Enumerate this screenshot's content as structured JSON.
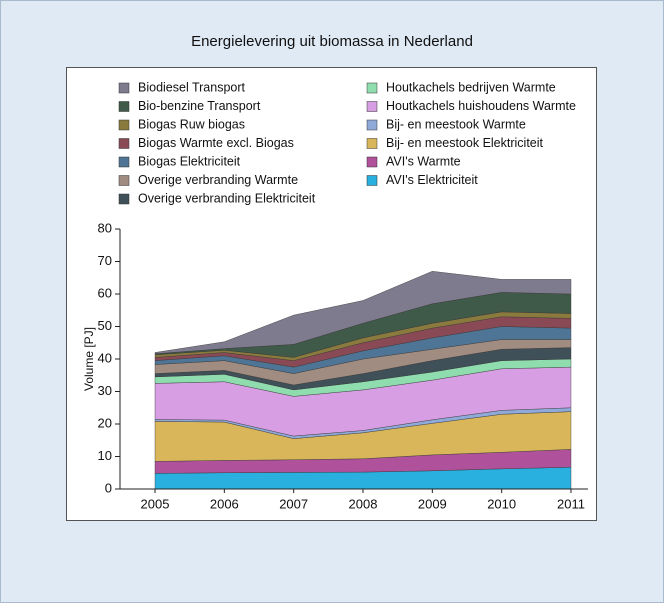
{
  "chart_data": {
    "type": "stacked_area",
    "title": "Energielevering uit biomassa in Nederland",
    "y_label": "Volume [PJ]",
    "categories": [
      "2005",
      "2006",
      "2007",
      "2008",
      "2009",
      "2010",
      "2011"
    ],
    "ylim": [
      0,
      80
    ],
    "yticks": [
      0,
      10,
      20,
      30,
      40,
      50,
      60,
      70,
      80
    ],
    "series": [
      {
        "name": "Biodiesel Transport",
        "color": "#7f7b8e",
        "values": [
          0.4,
          2.1,
          9,
          7,
          10,
          4,
          4.5
        ]
      },
      {
        "name": "Bio-benzine Transport",
        "color": "#3f5a48",
        "values": [
          0.3,
          0.5,
          4,
          4.5,
          6,
          6,
          6
        ]
      },
      {
        "name": "Biogas Ruw biogas",
        "color": "#8b7a3e",
        "values": [
          0.8,
          0.7,
          1,
          1.5,
          1.5,
          1.5,
          1.5
        ]
      },
      {
        "name": "Biogas Warmte excl. Biogas",
        "color": "#8a4a55",
        "values": [
          1,
          1,
          2,
          2.5,
          3,
          3,
          3
        ]
      },
      {
        "name": "Biogas Elektriciteit",
        "color": "#4f7596",
        "values": [
          1.2,
          1.5,
          2,
          2.5,
          3.5,
          4,
          3.5
        ]
      },
      {
        "name": "Overige verbranding Warmte",
        "color": "#a08c80",
        "values": [
          2.8,
          3,
          3.5,
          4.5,
          3.5,
          3,
          2.5
        ]
      },
      {
        "name": "Overige verbranding Elektriciteit",
        "color": "#3f5058",
        "values": [
          1,
          1.2,
          1.5,
          2.5,
          3.5,
          3.5,
          3.5
        ]
      },
      {
        "name": "Houtkachels bedrijven Warmte",
        "color": "#8fdcae",
        "values": [
          2,
          2.3,
          2,
          2.5,
          2.5,
          2.5,
          2.5
        ]
      },
      {
        "name": "Houtkachels huishoudens Warmte",
        "color": "#d89ee3",
        "values": [
          11.1,
          11.8,
          12.2,
          12.5,
          12.2,
          12.8,
          12.5
        ]
      },
      {
        "name": "Bij- en meestook Warmte",
        "color": "#8fa9d8",
        "values": [
          0.6,
          0.6,
          0.8,
          0.7,
          1.1,
          1.2,
          1.2
        ]
      },
      {
        "name": "Bij- en meestook Elektriciteit",
        "color": "#d9b65a",
        "values": [
          12.3,
          11.8,
          6.5,
          8,
          9.7,
          11.7,
          11.6
        ]
      },
      {
        "name": "AVI's Warmte",
        "color": "#b0519b",
        "values": [
          3.7,
          3.8,
          3.9,
          4.1,
          4.9,
          5.1,
          5.5
        ]
      },
      {
        "name": "AVI's Elektriciteit",
        "color": "#2ab0de",
        "values": [
          4.8,
          5,
          5.1,
          5.2,
          5.6,
          6.2,
          6.7
        ]
      }
    ]
  }
}
